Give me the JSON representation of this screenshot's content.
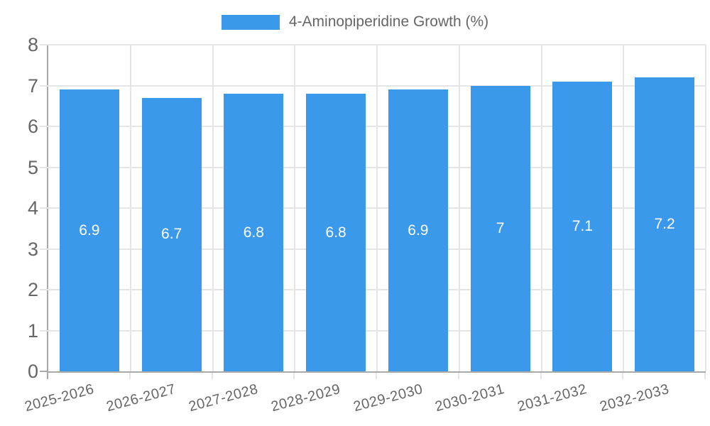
{
  "legend": {
    "label": "4-Aminopiperidine Growth (%)"
  },
  "chart_data": {
    "type": "bar",
    "title": "",
    "series_name": "4-Aminopiperidine Growth (%)",
    "categories": [
      "2025-2026",
      "2026-2027",
      "2027-2028",
      "2028-2029",
      "2029-2030",
      "2030-2031",
      "2031-2032",
      "2032-2033"
    ],
    "values": [
      6.9,
      6.7,
      6.8,
      6.8,
      6.9,
      7,
      7.1,
      7.2
    ],
    "value_labels": [
      "6.9",
      "6.7",
      "6.8",
      "6.8",
      "6.9",
      "7",
      "7.1",
      "7.2"
    ],
    "xlabel": "",
    "ylabel": "",
    "ylim": [
      0,
      8
    ],
    "yticks": [
      0,
      1,
      2,
      3,
      4,
      5,
      6,
      7,
      8
    ],
    "grid": true,
    "legend_position": "top",
    "bar_color": "#3B99EC",
    "bar_label_color": "#ffffff",
    "axis_color": "#A9A9A9",
    "grid_color": "#E5E5E5",
    "tick_text_color": "#666666"
  }
}
